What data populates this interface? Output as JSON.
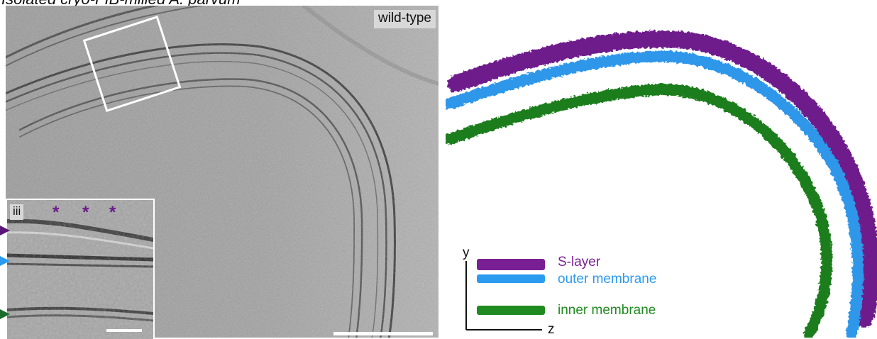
{
  "figure": {
    "title": "Isolated cryo-FIB-milled A. parvum"
  },
  "tomogram": {
    "panel_label": "wild-type",
    "inset_label": "iii",
    "asterisks": [
      "*",
      "*",
      "*"
    ]
  },
  "rendering": {
    "legend": [
      {
        "label": "S-layer",
        "color": "#7a1f93"
      },
      {
        "label": "outer membrane",
        "color": "#2a9bef"
      },
      {
        "label": "inner membrane",
        "color": "#1f8a1f"
      }
    ],
    "axes": {
      "y_label": "y",
      "z_label": "z"
    }
  },
  "colors": {
    "s_layer": "#6e1a8c",
    "outer_membrane": "#2d97ea",
    "inner_membrane": "#1b7d1b",
    "arrow_purple": "#5a1477",
    "arrow_blue": "#2a9bef",
    "arrow_green": "#1b6e2a"
  }
}
